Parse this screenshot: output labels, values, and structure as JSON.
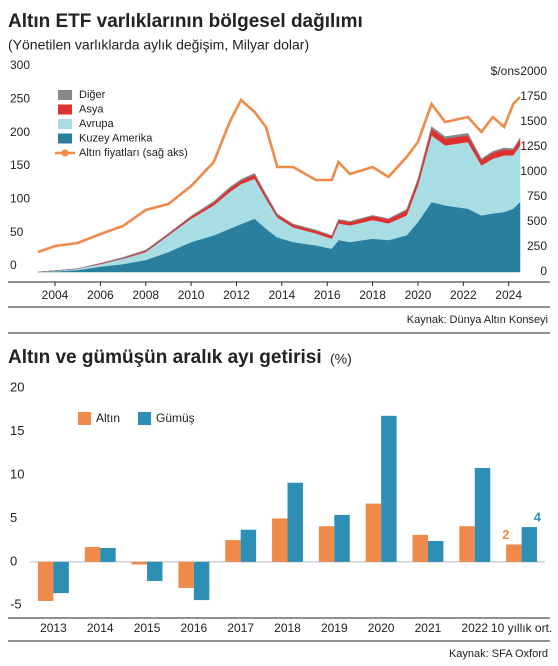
{
  "chart_data": [
    {
      "type": "stacked_area_line",
      "title": "Altın ETF varlıklarının bölgesel dağılımı",
      "subtitle": "(Yönetilen varlıklarda aylık değişim, Milyar dolar)",
      "y2_label": "$/ons",
      "source": "Kaynak: Dünya Altın Konseyi",
      "x": [
        2003.25,
        2004,
        2005,
        2006,
        2007,
        2008,
        2009,
        2010,
        2011,
        2011.7,
        2012.2,
        2012.8,
        2013.3,
        2013.8,
        2014.5,
        2015.5,
        2016.2,
        2016.5,
        2017,
        2018,
        2018.7,
        2019.5,
        2020,
        2020.6,
        2021.2,
        2022.2,
        2022.8,
        2023.3,
        2023.8,
        2024.2,
        2024.5
      ],
      "series": [
        {
          "name": "Kuzey Amerika",
          "color": "#2a7f9e",
          "values": [
            0,
            1,
            3,
            8,
            12,
            18,
            30,
            45,
            55,
            65,
            72,
            80,
            65,
            52,
            45,
            40,
            35,
            48,
            45,
            50,
            48,
            55,
            75,
            105,
            100,
            95,
            85,
            88,
            90,
            95,
            105
          ]
        },
        {
          "name": "Avrupa",
          "color": "#a8dde3",
          "values": [
            0,
            1,
            2,
            4,
            8,
            12,
            25,
            35,
            45,
            55,
            60,
            60,
            45,
            30,
            22,
            18,
            15,
            25,
            25,
            28,
            25,
            30,
            55,
            100,
            90,
            100,
            75,
            82,
            85,
            80,
            85
          ]
        },
        {
          "name": "Asya",
          "color": "#e03131",
          "values": [
            0,
            0,
            0,
            1,
            1,
            2,
            2,
            3,
            4,
            5,
            5,
            6,
            5,
            4,
            4,
            4,
            4,
            5,
            5,
            6,
            6,
            7,
            8,
            10,
            10,
            10,
            8,
            9,
            9,
            8,
            9
          ]
        },
        {
          "name": "Diğer",
          "color": "#888888",
          "values": [
            0,
            0,
            0,
            0,
            1,
            1,
            1,
            1,
            2,
            2,
            2,
            2,
            2,
            1,
            1,
            1,
            1,
            1,
            1,
            1,
            1,
            2,
            2,
            3,
            3,
            3,
            2,
            2,
            2,
            2,
            2
          ]
        },
        {
          "name": "Altın fiyatları (sağ aks)",
          "color": "#f08a4b",
          "axis": "y2",
          "values": [
            200,
            260,
            290,
            380,
            460,
            620,
            680,
            860,
            1100,
            1500,
            1720,
            1600,
            1450,
            1050,
            1050,
            920,
            920,
            1100,
            980,
            1050,
            950,
            1150,
            1300,
            1680,
            1500,
            1550,
            1400,
            1550,
            1450,
            1680,
            1750
          ]
        }
      ],
      "xlim": [
        2003.25,
        2024.5
      ],
      "xticks": [
        2004,
        2006,
        2008,
        2010,
        2012,
        2014,
        2016,
        2018,
        2020,
        2022,
        2024
      ],
      "ylim": [
        0,
        300
      ],
      "yticks": [
        0,
        50,
        100,
        150,
        200,
        250,
        300
      ],
      "y2lim": [
        0,
        2000
      ],
      "y2ticks": [
        0,
        250,
        500,
        750,
        1000,
        1250,
        1500,
        1750,
        2000
      ],
      "legend": "top-left",
      "grid": false
    },
    {
      "type": "bar",
      "title": "Altın ve gümüşün aralık ayı getirisi",
      "unit": "(%)",
      "source": "Kaynak: SFA Oxford",
      "categories": [
        "2013",
        "2014",
        "2015",
        "2016",
        "2017",
        "2018",
        "2019",
        "2020",
        "2021",
        "2022",
        "10 yıllık ort."
      ],
      "series": [
        {
          "name": "Altın",
          "color": "#f08a4b",
          "values": [
            -4.5,
            1.7,
            -0.3,
            -3.0,
            2.5,
            5.0,
            4.1,
            6.7,
            3.1,
            4.1,
            2
          ],
          "value_labels": [
            null,
            null,
            null,
            null,
            null,
            null,
            null,
            null,
            null,
            null,
            "2"
          ]
        },
        {
          "name": "Gümüş",
          "color": "#2e8fb4",
          "values": [
            -3.6,
            1.6,
            -2.2,
            -4.4,
            3.7,
            9.1,
            5.4,
            16.8,
            2.4,
            10.8,
            4
          ],
          "value_labels": [
            null,
            null,
            null,
            null,
            null,
            null,
            null,
            null,
            null,
            null,
            "4"
          ]
        }
      ],
      "ylim": [
        -6,
        20
      ],
      "yticks": [
        -5,
        0,
        5,
        10,
        15,
        20
      ],
      "legend": "top-left",
      "grid": false
    }
  ]
}
